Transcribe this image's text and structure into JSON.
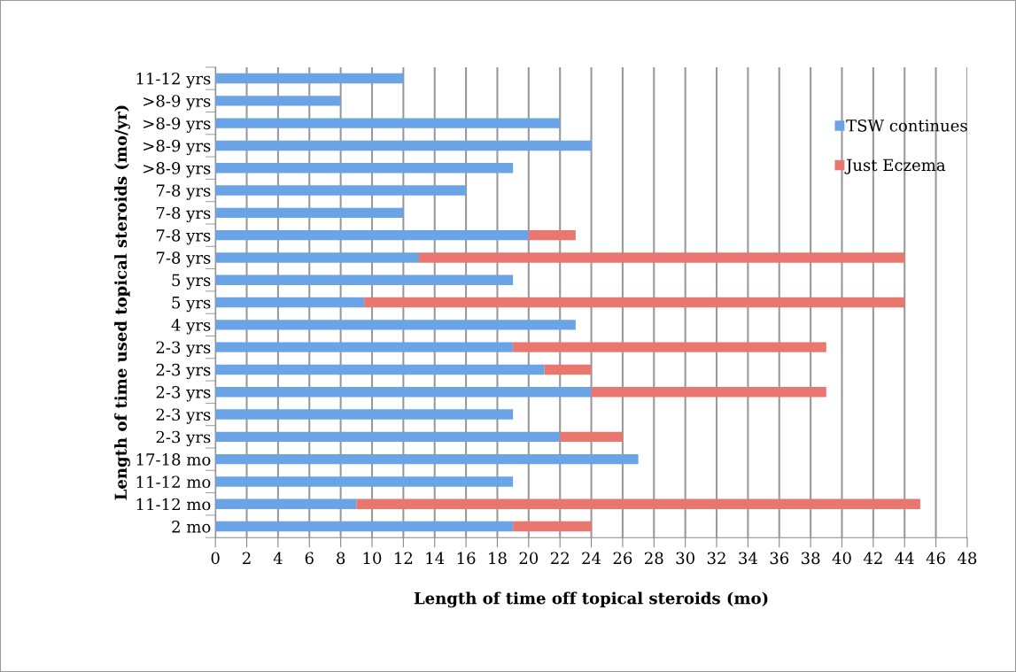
{
  "chart_data": {
    "type": "bar",
    "orientation": "horizontal",
    "stacked": true,
    "xlabel": "Length of time off topical steroids (mo)",
    "ylabel": "Length of time used topical steroids (mo/yr)",
    "categories": [
      "11-12 yrs",
      ">8-9 yrs",
      ">8-9 yrs",
      ">8-9 yrs",
      ">8-9 yrs",
      "7-8 yrs",
      "7-8 yrs",
      "7-8 yrs",
      "7-8 yrs",
      "5 yrs",
      "5 yrs",
      "4 yrs",
      "2-3 yrs",
      "2-3 yrs",
      "2-3 yrs",
      "2-3 yrs",
      "2-3 yrs",
      "17-18 mo",
      "11-12 mo",
      "11-12 mo",
      "2 mo"
    ],
    "series": [
      {
        "name": "TSW continues",
        "color": "#6aa3e6",
        "values": [
          12,
          8,
          22,
          24,
          19,
          16,
          12,
          20,
          13,
          19,
          9.5,
          23,
          19,
          21,
          24,
          19,
          22,
          27,
          19,
          9,
          19
        ]
      },
      {
        "name": "Just Eczema",
        "color": "#ea7670",
        "values": [
          null,
          null,
          null,
          null,
          null,
          null,
          null,
          3,
          31,
          null,
          34.5,
          null,
          20,
          3,
          15,
          null,
          4,
          null,
          null,
          36,
          5
        ]
      }
    ],
    "xlim": [
      0,
      48
    ],
    "xticks": [
      0,
      2,
      4,
      6,
      8,
      10,
      12,
      14,
      16,
      18,
      20,
      22,
      24,
      26,
      28,
      30,
      32,
      34,
      36,
      38,
      40,
      42,
      44,
      46,
      48
    ],
    "grid": "x",
    "legend": "top right"
  }
}
